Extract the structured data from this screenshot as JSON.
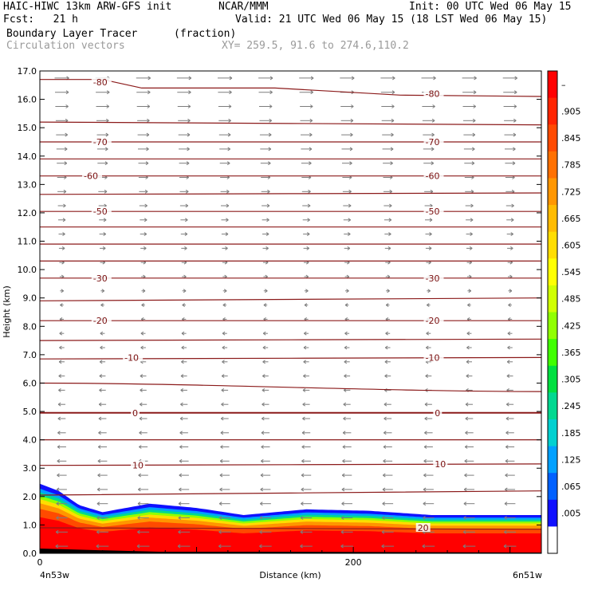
{
  "header": {
    "title": "HAIC-HIWC 13km ARW-GFS init",
    "org": "NCAR/MMM",
    "init": "Init: 00 UTC Wed 06 May 15",
    "fcst": "Fcst:   21 h",
    "valid": "Valid: 21 UTC Wed 06 May 15 (18 LST Wed 06 May 15)",
    "field": "Boundary Layer Tracer",
    "units": "(fraction)",
    "vectors": "Circulation vectors",
    "xy": "XY= 259.5, 91.6 to 274.6,110.2"
  },
  "chart_data": {
    "type": "heatmap",
    "ylabel": "Height (km)",
    "xlabel": "Distance (km)",
    "xlim": [
      0,
      320
    ],
    "ylim": [
      0,
      17
    ],
    "yticks": [
      "0.0",
      "1.0",
      "2.0",
      "3.0",
      "4.0",
      "5.0",
      "6.0",
      "7.0",
      "8.0",
      "9.0",
      "10.0",
      "11.0",
      "12.0",
      "13.0",
      "14.0",
      "15.0",
      "16.0",
      "17.0"
    ],
    "xticks": [
      {
        "value": 0,
        "label": "0"
      },
      {
        "value": 200,
        "label": "200"
      }
    ],
    "x_endpoints": {
      "left": "4n53w",
      "right": "6n51w"
    },
    "colorbar": {
      "labels": [
        "–",
        ".905",
        ".845",
        ".785",
        ".725",
        ".665",
        ".605",
        ".545",
        ".485",
        ".425",
        ".365",
        ".305",
        ".245",
        ".185",
        ".125",
        ".065",
        ".005"
      ],
      "colors": [
        "#ff0000",
        "#ff2400",
        "#ff4a00",
        "#ff7000",
        "#ff9600",
        "#ffbb00",
        "#ffdd00",
        "#ffff00",
        "#d0ff00",
        "#90ff00",
        "#40ff00",
        "#00e040",
        "#00d890",
        "#00d0d0",
        "#00a0ff",
        "#0060ff",
        "#1010ff",
        "#ffffff"
      ]
    },
    "temperature_contours": [
      {
        "label": "-80",
        "left_km": 16.7,
        "right_km": 16.1
      },
      {
        "label": "",
        "left_km": 15.2,
        "right_km": 15.1
      },
      {
        "label": "-70",
        "left_km": 14.5,
        "right_km": 14.5
      },
      {
        "label": "",
        "left_km": 13.9,
        "right_km": 13.9
      },
      {
        "label": "-60",
        "left_km": 13.3,
        "right_km": 13.3
      },
      {
        "label": "",
        "left_km": 12.65,
        "right_km": 12.7
      },
      {
        "label": "-50",
        "left_km": 12.05,
        "right_km": 12.05
      },
      {
        "label": "",
        "left_km": 11.5,
        "right_km": 11.5
      },
      {
        "label": "",
        "left_km": 10.9,
        "right_km": 10.9
      },
      {
        "label": "",
        "left_km": 10.3,
        "right_km": 10.3
      },
      {
        "label": "-30",
        "left_km": 9.7,
        "right_km": 9.7
      },
      {
        "label": "",
        "left_km": 8.9,
        "right_km": 9.0
      },
      {
        "label": "-20",
        "left_km": 8.2,
        "right_km": 8.2
      },
      {
        "label": "",
        "left_km": 7.5,
        "right_km": 7.55
      },
      {
        "label": "-10",
        "left_km": 6.85,
        "right_km": 6.9
      },
      {
        "label": "",
        "left_km": 6.0,
        "right_km": 5.7
      },
      {
        "label": "0",
        "left_km": 4.95,
        "right_km": 4.95
      },
      {
        "label": "",
        "left_km": 4.0,
        "right_km": 4.0
      },
      {
        "label": "10",
        "left_km": 3.1,
        "right_km": 3.15
      },
      {
        "label": "",
        "left_km": 2.05,
        "right_km": 2.2
      },
      {
        "label": "20",
        "left_km": 0.9,
        "right_km": 0.85
      }
    ],
    "contour_labels": [
      {
        "text": "-80",
        "x_km": 34,
        "z_km": 16.6
      },
      {
        "text": "-80",
        "x_km": 246,
        "z_km": 16.2
      },
      {
        "text": "-70",
        "x_km": 34,
        "z_km": 14.5
      },
      {
        "text": "-70",
        "x_km": 246,
        "z_km": 14.5
      },
      {
        "text": "-60",
        "x_km": 28,
        "z_km": 13.3
      },
      {
        "text": "-60",
        "x_km": 246,
        "z_km": 13.3
      },
      {
        "text": "-50",
        "x_km": 34,
        "z_km": 12.05
      },
      {
        "text": "-50",
        "x_km": 246,
        "z_km": 12.05
      },
      {
        "text": "-30",
        "x_km": 34,
        "z_km": 9.7
      },
      {
        "text": "-30",
        "x_km": 246,
        "z_km": 9.7
      },
      {
        "text": "-20",
        "x_km": 34,
        "z_km": 8.2
      },
      {
        "text": "-20",
        "x_km": 246,
        "z_km": 8.2
      },
      {
        "text": "-10",
        "x_km": 54,
        "z_km": 6.9
      },
      {
        "text": "-10",
        "x_km": 246,
        "z_km": 6.9
      },
      {
        "text": "0",
        "x_km": 59,
        "z_km": 4.95
      },
      {
        "text": "0",
        "x_km": 252,
        "z_km": 4.95
      },
      {
        "text": "10",
        "x_km": 59,
        "z_km": 3.1
      },
      {
        "text": "10",
        "x_km": 252,
        "z_km": 3.15
      },
      {
        "text": "20",
        "x_km": 241,
        "z_km": 0.9
      }
    ],
    "boundary_layer_top_km": [
      {
        "x_km": 0,
        "z_km": 2.45
      },
      {
        "x_km": 12,
        "z_km": 2.2
      },
      {
        "x_km": 25,
        "z_km": 1.7
      },
      {
        "x_km": 40,
        "z_km": 1.45
      },
      {
        "x_km": 70,
        "z_km": 1.75
      },
      {
        "x_km": 100,
        "z_km": 1.6
      },
      {
        "x_km": 130,
        "z_km": 1.35
      },
      {
        "x_km": 170,
        "z_km": 1.55
      },
      {
        "x_km": 210,
        "z_km": 1.5
      },
      {
        "x_km": 250,
        "z_km": 1.35
      },
      {
        "x_km": 285,
        "z_km": 1.35
      },
      {
        "x_km": 320,
        "z_km": 1.35
      }
    ],
    "wind_direction": {
      "upper": "east",
      "lower": "west",
      "reversal_km": 9.0
    }
  }
}
